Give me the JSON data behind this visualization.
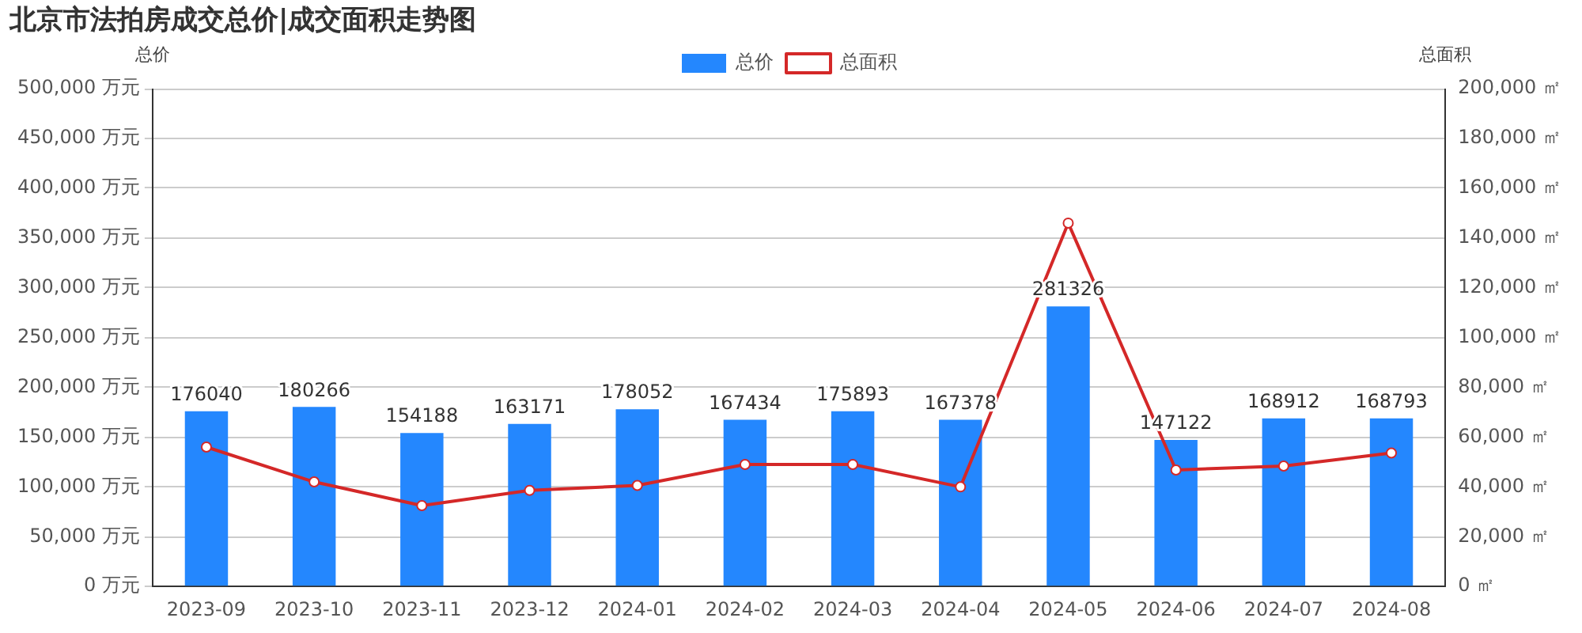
{
  "chart_data": {
    "type": "bar",
    "title": "北京市法拍房成交总价|成交面积走势图",
    "ylabel": "总价",
    "y2label": "总面积",
    "categories": [
      "2023-09",
      "2023-10",
      "2023-11",
      "2023-12",
      "2024-01",
      "2024-02",
      "2024-03",
      "2024-04",
      "2024-05",
      "2024-06",
      "2024-07",
      "2024-08"
    ],
    "series": [
      {
        "name": "总价",
        "color": "#2487fe",
        "values": [
          176040,
          180266,
          154188,
          163171,
          178052,
          167434,
          175893,
          167378,
          281326,
          147122,
          168912,
          168793
        ],
        "value_labels": [
          "176040",
          "180266",
          "154188",
          "163171",
          "178052",
          "167434",
          "175893",
          "167378",
          "281326",
          "147122",
          "168912",
          "168793"
        ]
      },
      {
        "name": "总面积",
        "type": "line",
        "axis": "y2",
        "color": "#d42828",
        "marker": "circle",
        "values": [
          56000,
          42000,
          32500,
          38600,
          40600,
          49000,
          49000,
          40000,
          146000,
          46800,
          48400,
          53600
        ]
      }
    ],
    "ylim": [
      0,
      500000
    ],
    "yticks": [
      {
        "value": 0,
        "label": "0 万元"
      },
      {
        "value": 50000,
        "label": "50,000 万元"
      },
      {
        "value": 100000,
        "label": "100,000 万元"
      },
      {
        "value": 150000,
        "label": "150,000 万元"
      },
      {
        "value": 200000,
        "label": "200,000 万元"
      },
      {
        "value": 250000,
        "label": "250,000 万元"
      },
      {
        "value": 300000,
        "label": "300,000 万元"
      },
      {
        "value": 350000,
        "label": "350,000 万元"
      },
      {
        "value": 400000,
        "label": "400,000 万元"
      },
      {
        "value": 450000,
        "label": "450,000 万元"
      },
      {
        "value": 500000,
        "label": "500,000 万元"
      }
    ],
    "y2lim": [
      0,
      200000
    ],
    "y2ticks": [
      {
        "value": 0,
        "label": "0 ㎡"
      },
      {
        "value": 20000,
        "label": "20,000 ㎡"
      },
      {
        "value": 40000,
        "label": "40,000 ㎡"
      },
      {
        "value": 60000,
        "label": "60,000 ㎡"
      },
      {
        "value": 80000,
        "label": "80,000 ㎡"
      },
      {
        "value": 100000,
        "label": "100,000 ㎡"
      },
      {
        "value": 120000,
        "label": "120,000 ㎡"
      },
      {
        "value": 140000,
        "label": "140,000 ㎡"
      },
      {
        "value": 160000,
        "label": "160,000 ㎡"
      },
      {
        "value": 180000,
        "label": "180,000 ㎡"
      },
      {
        "value": 200000,
        "label": "200,000 ㎡"
      }
    ],
    "grid": "y",
    "legend": "top"
  }
}
